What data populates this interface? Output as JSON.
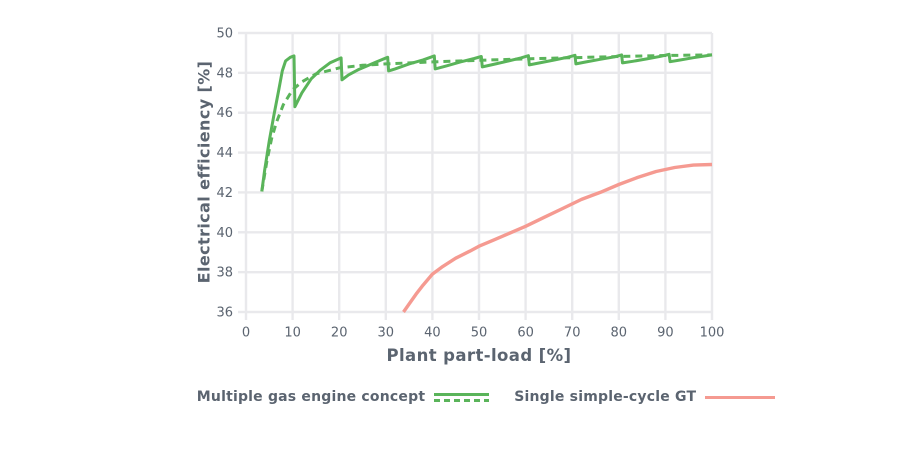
{
  "figure": {
    "y_axis_title": "Electrical efficiency [%]",
    "x_axis_title": "Plant part-load [%]"
  },
  "legend": {
    "items": [
      {
        "label": "Multiple gas engine concept",
        "swatch": "green-solid-and-dashed-lines"
      },
      {
        "label": "Single simple-cycle GT",
        "swatch": "pink-solid-line"
      }
    ]
  },
  "colors": {
    "green": "#5ab45a",
    "pink": "#f59a91",
    "text": "#5b6470",
    "grid": "#e9e9ec",
    "background": "#ffffff"
  },
  "chart_data": {
    "type": "line",
    "title": "",
    "xlabel": "Plant part-load [%]",
    "ylabel": "Electrical efficiency [%]",
    "xlim": [
      0,
      100
    ],
    "ylim": [
      36,
      50
    ],
    "x_ticks": [
      0,
      10,
      20,
      30,
      40,
      50,
      60,
      70,
      80,
      90,
      100
    ],
    "y_ticks": [
      36,
      38,
      40,
      42,
      44,
      46,
      48,
      50
    ],
    "grid": true,
    "legend_position": "bottom",
    "series": [
      {
        "name": "Multiple gas engine concept",
        "variant": "solid",
        "color": "#5ab45a",
        "points": [
          [
            3.4,
            42.05
          ],
          [
            4,
            43.1
          ],
          [
            5,
            44.6
          ],
          [
            6,
            45.9
          ],
          [
            7,
            47.1
          ],
          [
            7.8,
            48.1
          ],
          [
            8.5,
            48.6
          ],
          [
            9.5,
            48.78
          ],
          [
            10.3,
            48.85
          ],
          [
            10.5,
            46.3
          ],
          [
            12,
            47.0
          ],
          [
            14,
            47.7
          ],
          [
            16,
            48.15
          ],
          [
            18,
            48.5
          ],
          [
            20.4,
            48.75
          ],
          [
            20.6,
            47.65
          ],
          [
            22,
            47.9
          ],
          [
            24,
            48.15
          ],
          [
            26,
            48.35
          ],
          [
            28,
            48.55
          ],
          [
            30.4,
            48.78
          ],
          [
            30.6,
            48.1
          ],
          [
            32,
            48.2
          ],
          [
            35,
            48.45
          ],
          [
            38,
            48.65
          ],
          [
            40.4,
            48.85
          ],
          [
            40.6,
            48.2
          ],
          [
            43,
            48.35
          ],
          [
            46,
            48.55
          ],
          [
            49,
            48.72
          ],
          [
            50.5,
            48.82
          ],
          [
            50.7,
            48.3
          ],
          [
            53,
            48.42
          ],
          [
            56,
            48.58
          ],
          [
            59,
            48.75
          ],
          [
            60.6,
            48.86
          ],
          [
            60.8,
            48.4
          ],
          [
            63,
            48.5
          ],
          [
            66,
            48.64
          ],
          [
            69,
            48.78
          ],
          [
            70.6,
            48.88
          ],
          [
            70.8,
            48.45
          ],
          [
            73,
            48.55
          ],
          [
            76,
            48.68
          ],
          [
            79,
            48.8
          ],
          [
            80.6,
            48.9
          ],
          [
            80.8,
            48.5
          ],
          [
            83,
            48.58
          ],
          [
            86,
            48.7
          ],
          [
            89,
            48.83
          ],
          [
            90.8,
            48.93
          ],
          [
            91.0,
            48.56
          ],
          [
            93,
            48.64
          ],
          [
            96,
            48.76
          ],
          [
            100,
            48.9
          ]
        ]
      },
      {
        "name": "Multiple gas engine concept",
        "variant": "dashed",
        "color": "#5ab45a",
        "points": [
          [
            3.4,
            42.05
          ],
          [
            4.5,
            43.6
          ],
          [
            5.5,
            44.7
          ],
          [
            6.5,
            45.5
          ],
          [
            8,
            46.4
          ],
          [
            10,
            47.15
          ],
          [
            12,
            47.55
          ],
          [
            15,
            47.95
          ],
          [
            20,
            48.25
          ],
          [
            25,
            48.38
          ],
          [
            30,
            48.45
          ],
          [
            40,
            48.55
          ],
          [
            50,
            48.63
          ],
          [
            60,
            48.7
          ],
          [
            70,
            48.76
          ],
          [
            80,
            48.82
          ],
          [
            90,
            48.87
          ],
          [
            100,
            48.9
          ]
        ]
      },
      {
        "name": "Single simple-cycle GT",
        "variant": "solid",
        "color": "#f59a91",
        "points": [
          [
            33.8,
            36.0
          ],
          [
            35,
            36.4
          ],
          [
            36.5,
            36.9
          ],
          [
            38,
            37.35
          ],
          [
            40,
            37.9
          ],
          [
            42,
            38.25
          ],
          [
            45,
            38.7
          ],
          [
            48,
            39.05
          ],
          [
            50,
            39.3
          ],
          [
            53,
            39.6
          ],
          [
            56,
            39.9
          ],
          [
            60,
            40.3
          ],
          [
            64,
            40.75
          ],
          [
            68,
            41.2
          ],
          [
            72,
            41.65
          ],
          [
            76,
            42.0
          ],
          [
            80,
            42.4
          ],
          [
            84,
            42.75
          ],
          [
            88,
            43.05
          ],
          [
            92,
            43.25
          ],
          [
            96,
            43.37
          ],
          [
            100,
            43.4
          ]
        ]
      }
    ]
  }
}
